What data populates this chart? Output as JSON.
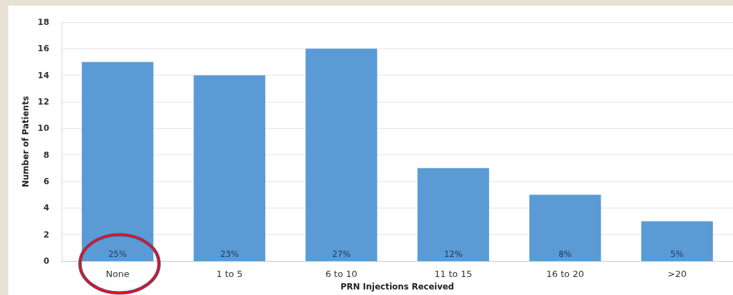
{
  "chart_data": {
    "type": "bar",
    "xlabel": "PRN Injections Received",
    "ylabel": "Number of Patients",
    "categories": [
      "None",
      "1 to 5",
      "6 to 10",
      "11 to 15",
      "16 to 20",
      ">20"
    ],
    "values": [
      15,
      14,
      16,
      7,
      5,
      3
    ],
    "color": "#5b9bd5",
    "annotations": [
      {
        "text": "25%",
        "x": "None",
        "y": 0
      },
      {
        "text": "23%",
        "x": "1 to 5",
        "y": 0
      },
      {
        "text": "27%",
        "x": "6 to 10",
        "y": 0
      },
      {
        "text": "12%",
        "x": "11 to 15",
        "y": 0
      },
      {
        "text": "8%",
        "x": "16 to 20",
        "y": 0
      },
      {
        "text": "5%",
        "x": ">20",
        "y": 0
      }
    ],
    "ylim": [
      0,
      18
    ],
    "yticks": [
      0,
      2,
      4,
      6,
      8,
      10,
      12,
      14,
      16,
      18
    ],
    "grid": "y"
  }
}
